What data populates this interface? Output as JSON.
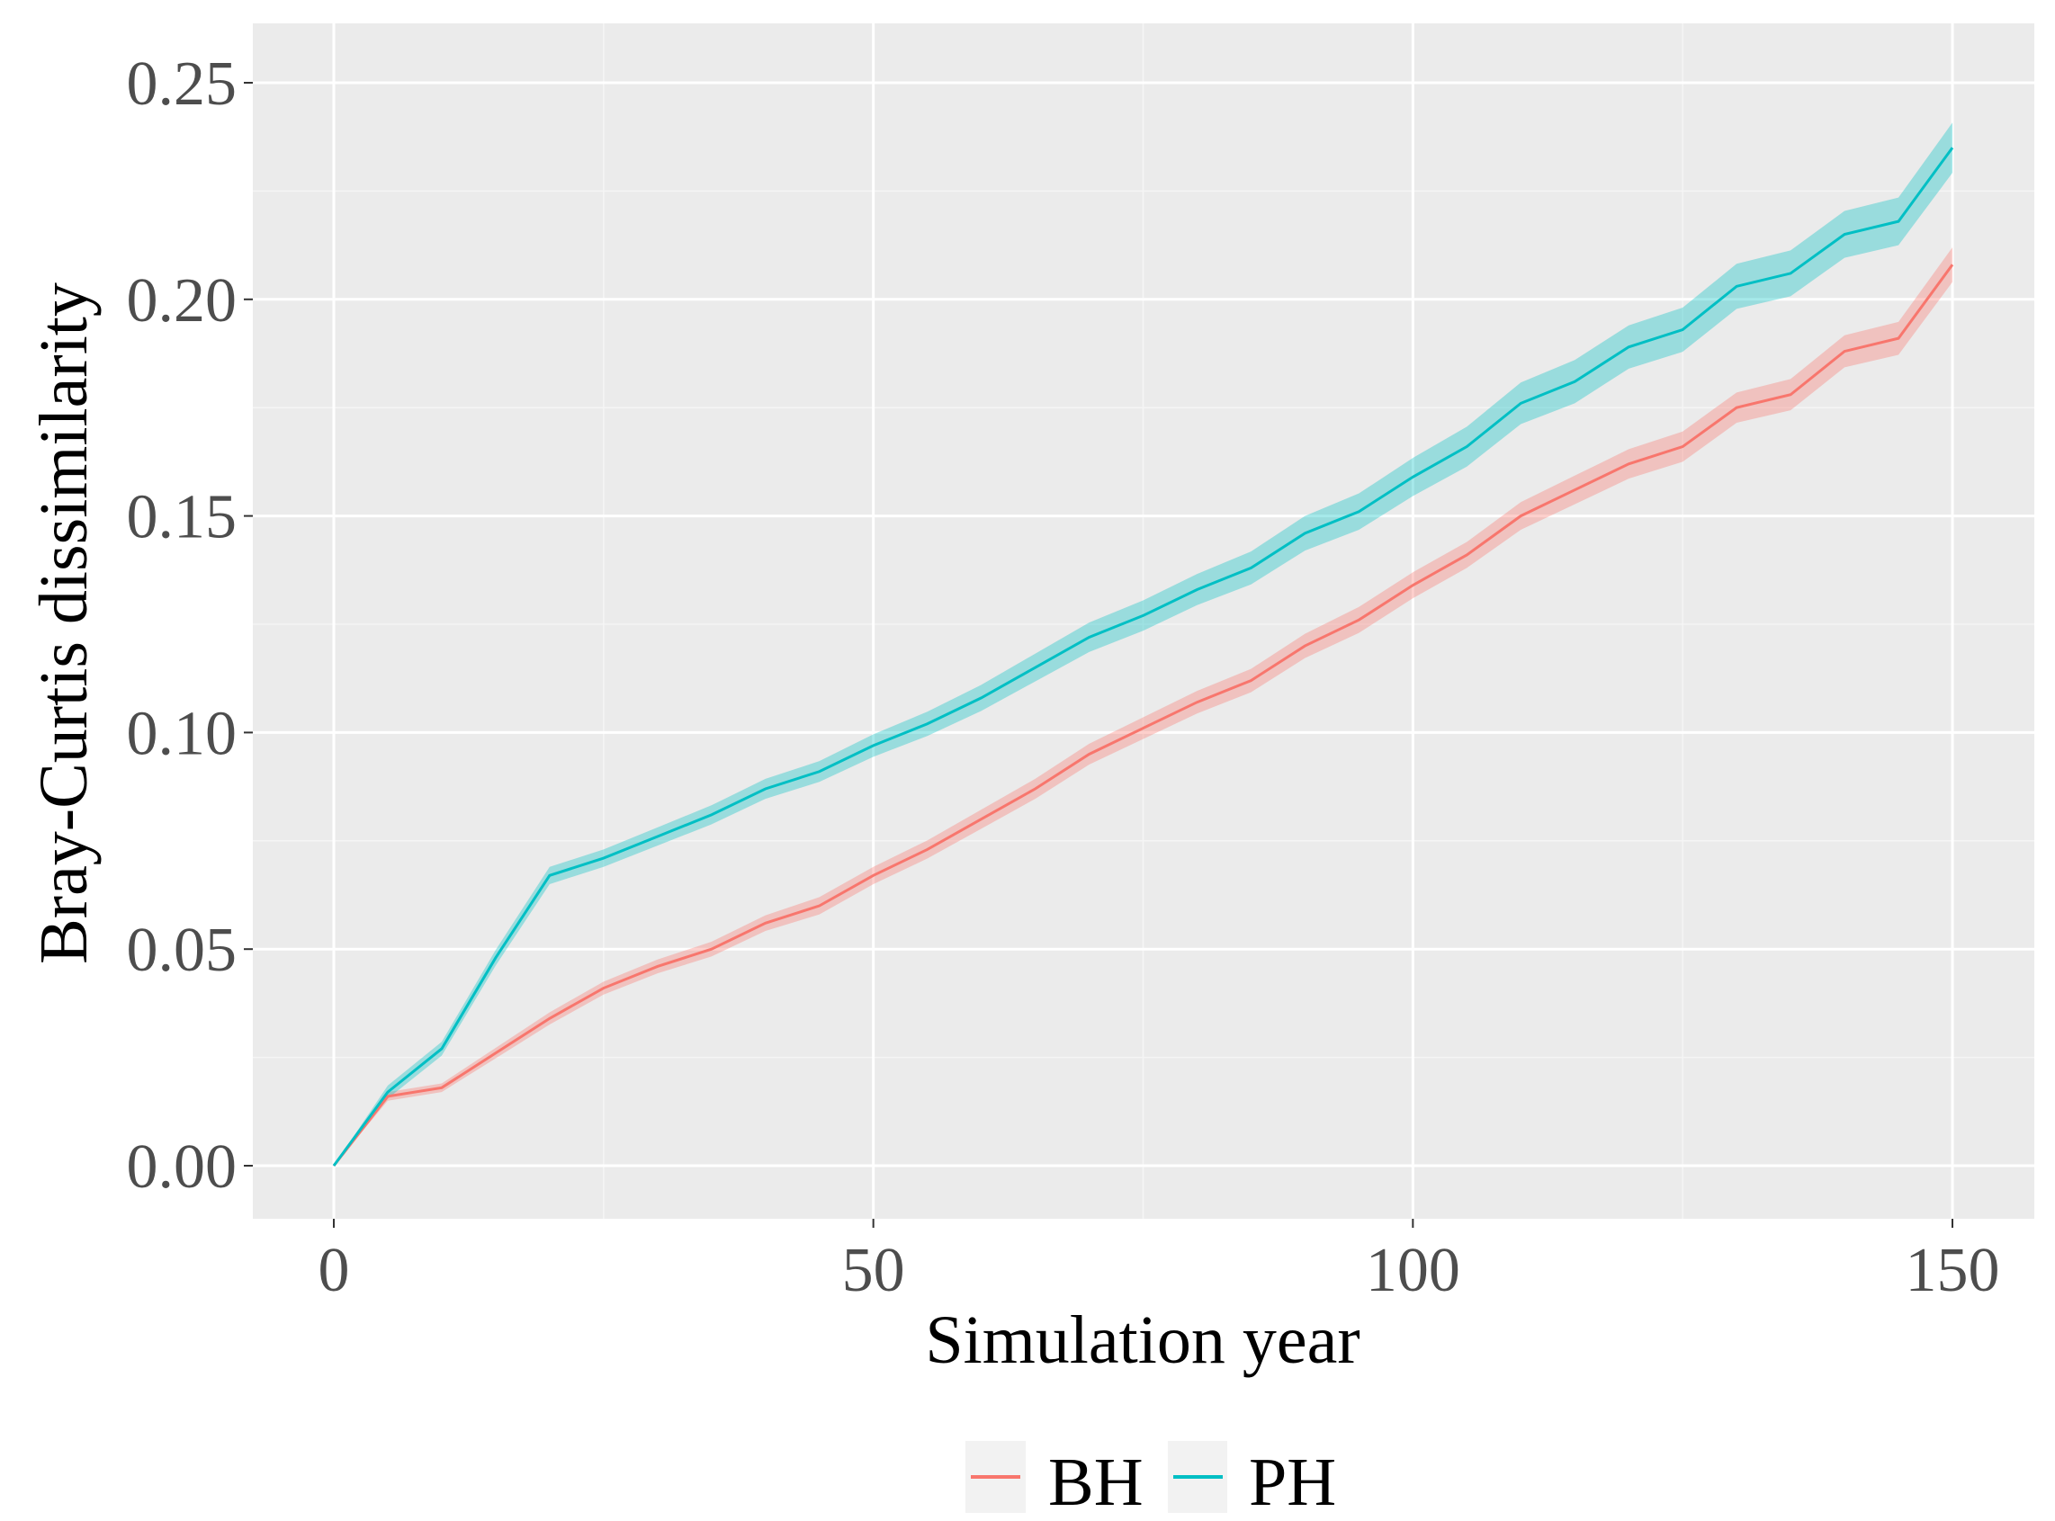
{
  "chart_data": {
    "type": "line",
    "xlabel": "Simulation year",
    "ylabel": "Bray-Curtis dissimilarity",
    "xlim": [
      -7.5,
      157.5
    ],
    "ylim": [
      -0.012,
      0.262
    ],
    "x_ticks": [
      "0",
      "50",
      "100",
      "150"
    ],
    "y_ticks": [
      "0.00",
      "0.05",
      "0.10",
      "0.15",
      "0.20",
      "0.25"
    ],
    "grid": true,
    "legend_position": "bottom",
    "x": [
      0,
      5,
      10,
      15,
      20,
      25,
      30,
      35,
      40,
      45,
      50,
      55,
      60,
      65,
      70,
      75,
      80,
      85,
      90,
      95,
      100,
      105,
      110,
      115,
      120,
      125,
      130,
      135,
      140,
      145,
      150
    ],
    "series": [
      {
        "name": "BH",
        "color": "#F8766D",
        "values": [
          0,
          0.016,
          0.018,
          0.026,
          0.034,
          0.041,
          0.046,
          0.05,
          0.056,
          0.06,
          0.067,
          0.073,
          0.08,
          0.087,
          0.095,
          0.101,
          0.107,
          0.112,
          0.12,
          0.126,
          0.134,
          0.141,
          0.15,
          0.156,
          0.162,
          0.166,
          0.175,
          0.178,
          0.188,
          0.191,
          0.208
        ],
        "band_halfwidth": [
          0,
          0.001,
          0.001,
          0.0012,
          0.0014,
          0.0015,
          0.0016,
          0.0017,
          0.0018,
          0.002,
          0.002,
          0.0021,
          0.0022,
          0.0023,
          0.0024,
          0.0025,
          0.0026,
          0.0027,
          0.0028,
          0.003,
          0.003,
          0.003,
          0.0032,
          0.0033,
          0.0034,
          0.0035,
          0.0035,
          0.0036,
          0.0037,
          0.0038,
          0.004
        ]
      },
      {
        "name": "PH",
        "color": "#00BFC4",
        "values": [
          0,
          0.017,
          0.027,
          0.048,
          0.067,
          0.071,
          0.076,
          0.081,
          0.087,
          0.091,
          0.097,
          0.102,
          0.108,
          0.115,
          0.122,
          0.127,
          0.133,
          0.138,
          0.146,
          0.151,
          0.159,
          0.166,
          0.176,
          0.181,
          0.189,
          0.193,
          0.203,
          0.206,
          0.215,
          0.218,
          0.235
        ],
        "band_halfwidth": [
          0,
          0.0015,
          0.0016,
          0.0018,
          0.002,
          0.002,
          0.0021,
          0.0022,
          0.0023,
          0.0024,
          0.0026,
          0.0028,
          0.003,
          0.0032,
          0.0034,
          0.0035,
          0.0036,
          0.0038,
          0.004,
          0.0042,
          0.0044,
          0.0046,
          0.0048,
          0.005,
          0.005,
          0.0051,
          0.0052,
          0.0053,
          0.0054,
          0.0055,
          0.0058
        ]
      }
    ]
  }
}
